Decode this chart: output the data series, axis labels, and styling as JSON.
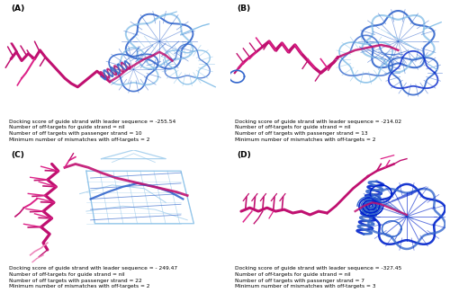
{
  "panels": [
    {
      "label": "(A)",
      "text_lines": [
        "Docking score of guide strand with leader sequence = -255.54",
        "Number of off-targets for guide strand = nil",
        "Number of off targets with passenger strand = 10",
        "Minimum number of mismatches with off-targets = 2"
      ]
    },
    {
      "label": "(B)",
      "text_lines": [
        "Docking score of guide strand with leader sequence = -214.02",
        "Number of off-targets for guide strand = nil",
        "Number of off targets with passenger strand = 13",
        "Minimum number of mismatches with off-targets = 2"
      ]
    },
    {
      "label": "(C)",
      "text_lines": [
        "Docking score of guide strand with leader sequence = - 249.47",
        "Number of off-targets for guide strand = nil",
        "Number of off targets with passenger strand = 22",
        "Minimum number of mismatches with off-targets = 2"
      ]
    },
    {
      "label": "(D)",
      "text_lines": [
        "Docking score of guide strand with leader sequence = -327.45",
        "Number of off-targets for guide strand = nil",
        "Number of off targets with passenger strand = 7",
        "Minimum number of mismatches with off-targets = 3"
      ]
    }
  ],
  "bg_color": "#ffffff",
  "text_color": "#000000",
  "label_fontsize": 6.5,
  "annotation_fontsize": 4.2,
  "colors": {
    "magenta": "#c01070",
    "hot_pink": "#dd2288",
    "light_blue": "#88c0e8",
    "blue": "#3366cc",
    "dark_blue": "#1133aa",
    "deep_blue": "#0022cc",
    "pink": "#ee88bb"
  }
}
